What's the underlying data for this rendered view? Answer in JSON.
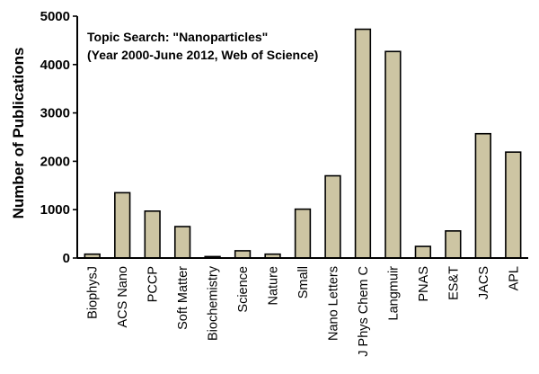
{
  "chart_data": {
    "type": "bar",
    "title": "",
    "annotation": [
      "Topic Search: \"Nanoparticles\"",
      "(Year 2000-June 2012, Web of Science)"
    ],
    "xlabel": "",
    "ylabel": "Number of Publications",
    "categories": [
      "BiophysJ",
      "ACS Nano",
      "PCCP",
      "Soft Matter",
      "Biochemistry",
      "Science",
      "Nature",
      "Small",
      "Nano Letters",
      "J Phys Chem C",
      "Langmuir",
      "PNAS",
      "ES&T",
      "JACS",
      "APL"
    ],
    "values": [
      80,
      1350,
      970,
      650,
      30,
      150,
      80,
      1010,
      1700,
      4730,
      4270,
      240,
      560,
      2570,
      2190
    ],
    "ylim": [
      0,
      5000
    ],
    "yticks": [
      0,
      1000,
      2000,
      3000,
      4000,
      5000
    ],
    "grid": false,
    "bar_color": "#cdc5a3"
  }
}
